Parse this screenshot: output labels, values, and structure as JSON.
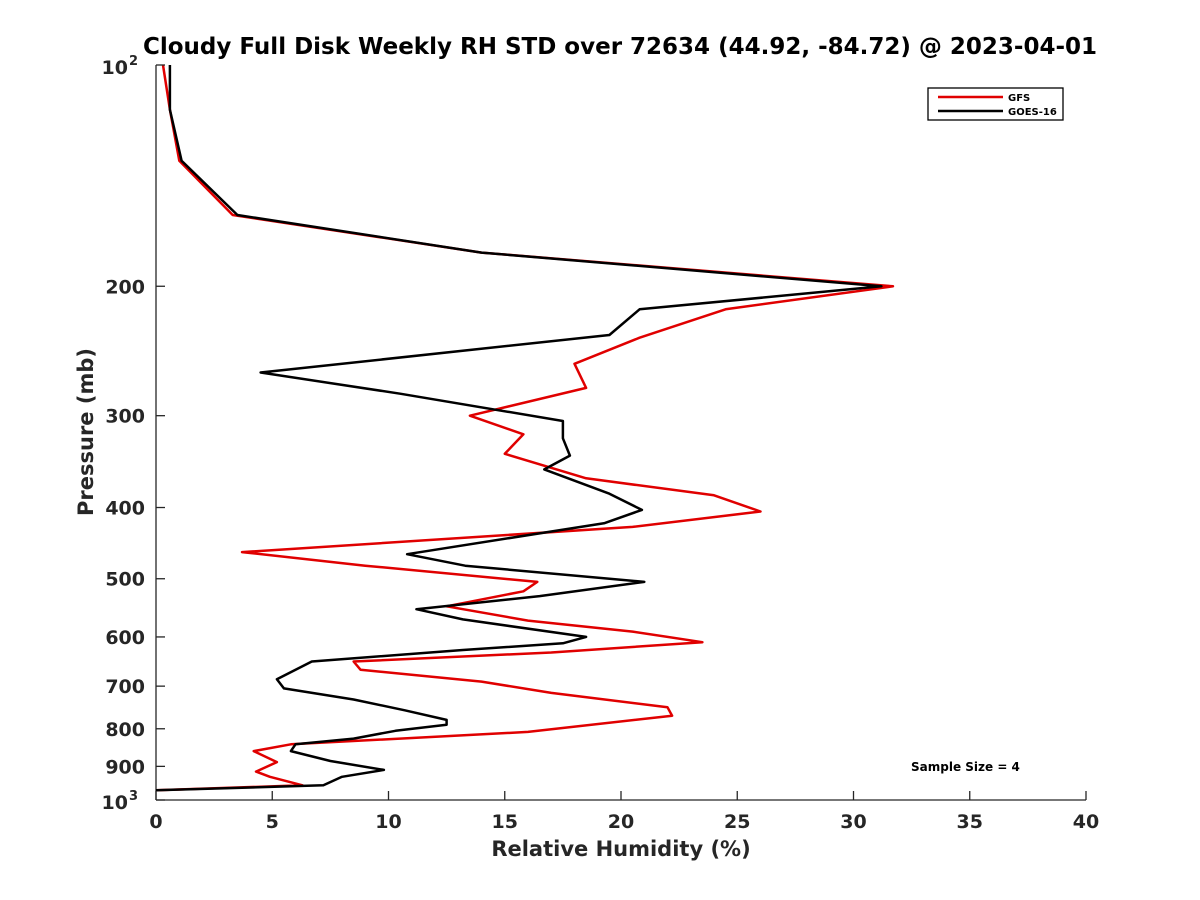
{
  "chart_data": {
    "type": "line",
    "title": "Cloudy Full Disk Weekly RH STD over 72634 (44.92, -84.72) @ 2023-04-01",
    "xlabel": "Relative Humidity (%)",
    "ylabel": "Pressure (mb)",
    "xlim": [
      0,
      40
    ],
    "ylim": [
      100,
      1000
    ],
    "y_scale": "log",
    "y_reversed": true,
    "grid": false,
    "x_ticks": [
      "0",
      "5",
      "10",
      "15",
      "20",
      "25",
      "30",
      "35",
      "40"
    ],
    "y_ticks": [
      {
        "value": 100,
        "base": "10",
        "exp": "2"
      },
      {
        "value": 200,
        "label": "200"
      },
      {
        "value": 300,
        "label": "300"
      },
      {
        "value": 400,
        "label": "400"
      },
      {
        "value": 500,
        "label": "500"
      },
      {
        "value": 600,
        "label": "600"
      },
      {
        "value": 700,
        "label": "700"
      },
      {
        "value": 800,
        "label": "800"
      },
      {
        "value": 900,
        "label": "900"
      },
      {
        "value": 1000,
        "base": "10",
        "exp": "3"
      }
    ],
    "legend": {
      "position": "top-right",
      "entries": [
        "GFS",
        "GOES-16"
      ]
    },
    "annotation": "Sample Size = 4",
    "series": [
      {
        "name": "GFS",
        "color": "#e00000",
        "points": [
          [
            0.3,
            100
          ],
          [
            0.6,
            115
          ],
          [
            1.0,
            135
          ],
          [
            3.3,
            160
          ],
          [
            14.0,
            180
          ],
          [
            31.7,
            200
          ],
          [
            24.5,
            215
          ],
          [
            20.8,
            235
          ],
          [
            18.0,
            255
          ],
          [
            18.5,
            275
          ],
          [
            13.5,
            300
          ],
          [
            15.8,
            318
          ],
          [
            15.0,
            338
          ],
          [
            18.5,
            365
          ],
          [
            24.0,
            385
          ],
          [
            26.0,
            405
          ],
          [
            20.5,
            425
          ],
          [
            3.7,
            460
          ],
          [
            9.0,
            480
          ],
          [
            16.4,
            505
          ],
          [
            15.8,
            520
          ],
          [
            12.5,
            545
          ],
          [
            16.0,
            570
          ],
          [
            20.5,
            590
          ],
          [
            23.5,
            610
          ],
          [
            17.0,
            630
          ],
          [
            8.5,
            648
          ],
          [
            8.8,
            665
          ],
          [
            14.0,
            690
          ],
          [
            17.0,
            715
          ],
          [
            22.0,
            748
          ],
          [
            22.2,
            768
          ],
          [
            16.0,
            808
          ],
          [
            5.8,
            840
          ],
          [
            4.2,
            858
          ],
          [
            5.2,
            888
          ],
          [
            4.3,
            915
          ],
          [
            4.9,
            930
          ],
          [
            6.3,
            955
          ],
          [
            0.0,
            970
          ]
        ]
      },
      {
        "name": "GOES-16",
        "color": "#000000",
        "points": [
          [
            0.6,
            100
          ],
          [
            0.6,
            115
          ],
          [
            1.1,
            135
          ],
          [
            3.5,
            160
          ],
          [
            14.0,
            180
          ],
          [
            31.2,
            200
          ],
          [
            20.8,
            215
          ],
          [
            19.5,
            233
          ],
          [
            4.5,
            262
          ],
          [
            10.5,
            280
          ],
          [
            17.5,
            305
          ],
          [
            17.5,
            322
          ],
          [
            17.8,
            340
          ],
          [
            16.7,
            355
          ],
          [
            19.5,
            383
          ],
          [
            20.9,
            403
          ],
          [
            19.3,
            420
          ],
          [
            10.8,
            463
          ],
          [
            13.3,
            480
          ],
          [
            21.0,
            505
          ],
          [
            16.5,
            528
          ],
          [
            11.2,
            550
          ],
          [
            13.2,
            568
          ],
          [
            18.5,
            600
          ],
          [
            17.5,
            612
          ],
          [
            13.2,
            625
          ],
          [
            6.7,
            648
          ],
          [
            5.2,
            685
          ],
          [
            5.5,
            705
          ],
          [
            8.5,
            730
          ],
          [
            10.7,
            755
          ],
          [
            12.5,
            778
          ],
          [
            12.5,
            790
          ],
          [
            10.3,
            805
          ],
          [
            8.5,
            825
          ],
          [
            6.0,
            840
          ],
          [
            5.8,
            858
          ],
          [
            7.5,
            885
          ],
          [
            9.8,
            910
          ],
          [
            8.0,
            930
          ],
          [
            7.2,
            955
          ],
          [
            0.0,
            970
          ]
        ]
      }
    ]
  }
}
